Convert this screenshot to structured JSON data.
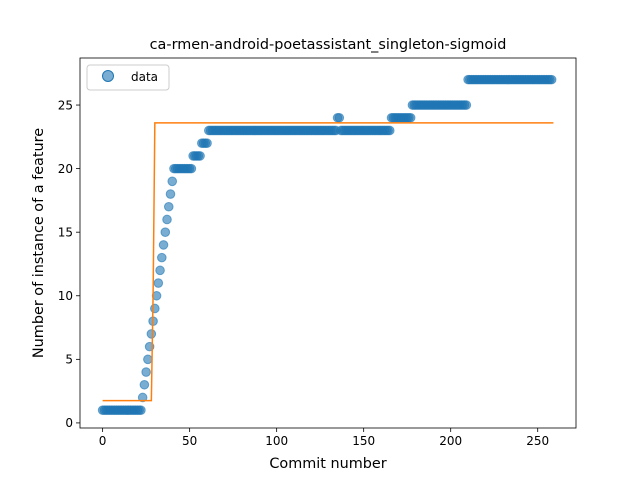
{
  "chart_data": {
    "type": "scatter",
    "title": "ca-rmen-android-poetassistant_singleton-sigmoid",
    "xlabel": "Commit number",
    "ylabel": "Number of instance of a feature",
    "xlim": [
      -13,
      272
    ],
    "ylim": [
      -0.4,
      28.7
    ],
    "xticks": [
      0,
      50,
      100,
      150,
      200,
      250
    ],
    "yticks": [
      0,
      5,
      10,
      15,
      20,
      25
    ],
    "grid": false,
    "legend": {
      "placement": "top-left",
      "entries": [
        "data"
      ]
    },
    "colors": {
      "data": "#1f77b4",
      "fit": "#ff7f0e"
    },
    "data_runs": [
      {
        "from": 0,
        "to": 22,
        "y": 1
      },
      {
        "from": 23,
        "to": 23,
        "y": 2
      },
      {
        "from": 24,
        "to": 24,
        "y": 3
      },
      {
        "from": 25,
        "to": 25,
        "y": 4
      },
      {
        "from": 26,
        "to": 26,
        "y": 5
      },
      {
        "from": 27,
        "to": 27,
        "y": 6
      },
      {
        "from": 28,
        "to": 28,
        "y": 7
      },
      {
        "from": 29,
        "to": 29,
        "y": 8
      },
      {
        "from": 30,
        "to": 30,
        "y": 9
      },
      {
        "from": 31,
        "to": 31,
        "y": 10
      },
      {
        "from": 32,
        "to": 32,
        "y": 11
      },
      {
        "from": 33,
        "to": 33,
        "y": 12
      },
      {
        "from": 34,
        "to": 34,
        "y": 13
      },
      {
        "from": 35,
        "to": 35,
        "y": 14
      },
      {
        "from": 36,
        "to": 36,
        "y": 15
      },
      {
        "from": 37,
        "to": 37,
        "y": 16
      },
      {
        "from": 38,
        "to": 38,
        "y": 17
      },
      {
        "from": 39,
        "to": 39,
        "y": 18
      },
      {
        "from": 40,
        "to": 40,
        "y": 19
      },
      {
        "from": 41,
        "to": 51,
        "y": 20
      },
      {
        "from": 52,
        "to": 56,
        "y": 21
      },
      {
        "from": 57,
        "to": 60,
        "y": 22
      },
      {
        "from": 61,
        "to": 134,
        "y": 23
      },
      {
        "from": 135,
        "to": 136,
        "y": 24
      },
      {
        "from": 137,
        "to": 165,
        "y": 23
      },
      {
        "from": 166,
        "to": 177,
        "y": 24
      },
      {
        "from": 178,
        "to": 209,
        "y": 25
      },
      {
        "from": 210,
        "to": 258,
        "y": 27
      }
    ],
    "fit_line": {
      "x": [
        0,
        28,
        29,
        30,
        259
      ],
      "y": [
        1.75,
        1.75,
        10,
        23.6,
        23.6
      ]
    }
  }
}
